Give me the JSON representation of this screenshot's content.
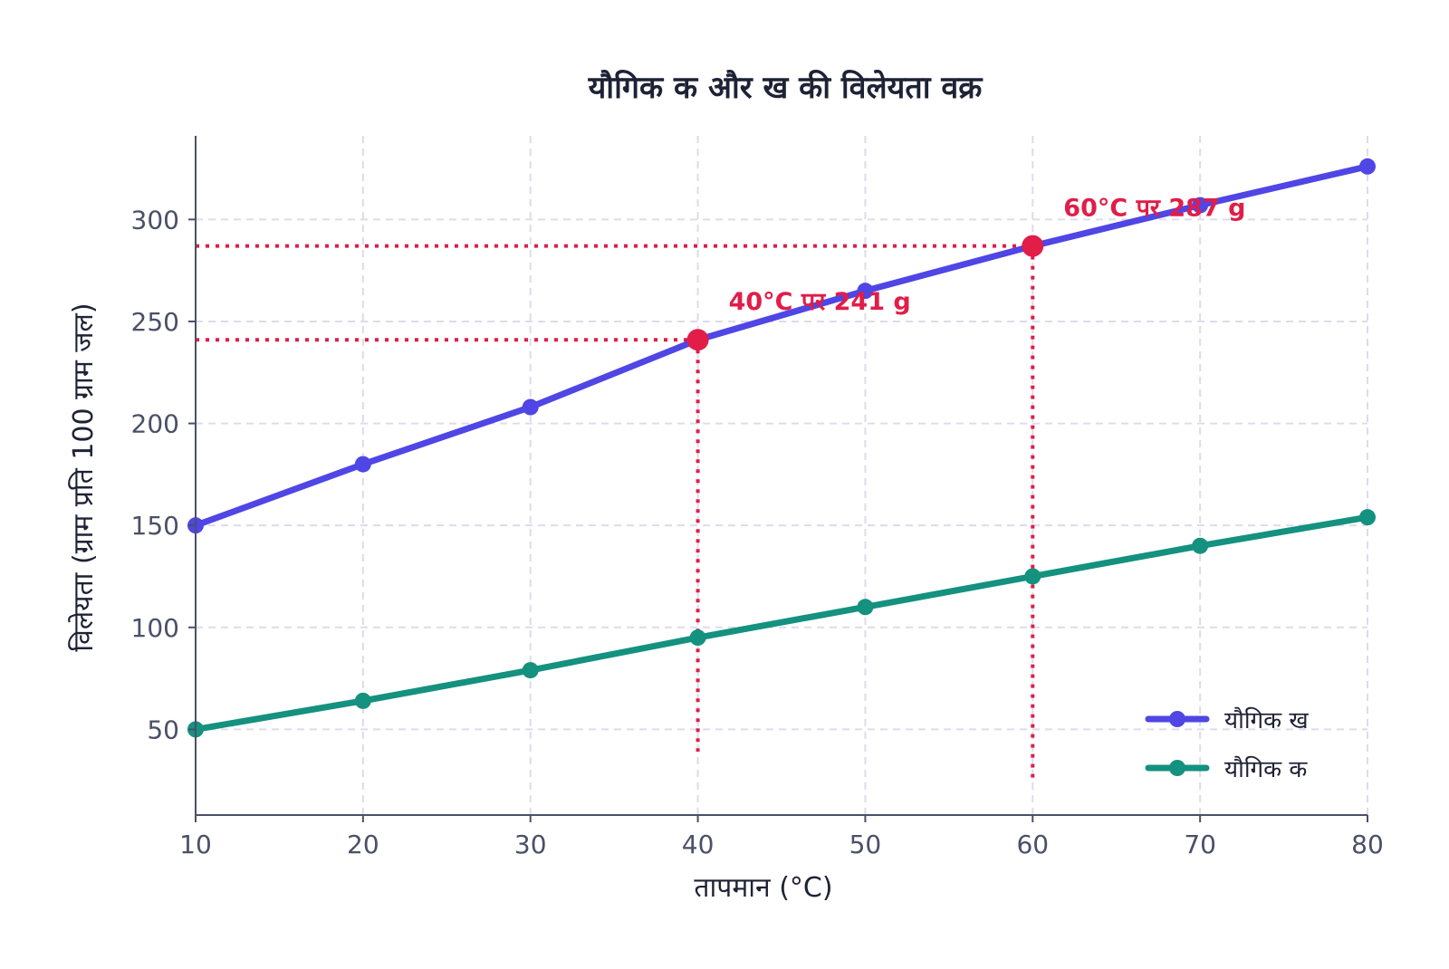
{
  "chart_data": {
    "type": "line",
    "title": "यौगिक क और ख की विलेयता वक्र",
    "xlabel": "तापमान (°C)",
    "ylabel": "विलेयता (ग्राम प्रति 100 ग्राम जल)",
    "x": [
      10,
      20,
      30,
      40,
      50,
      60,
      70,
      80
    ],
    "xlim": [
      10,
      80
    ],
    "ylim": [
      8,
      341
    ],
    "xticks": [
      "10",
      "20",
      "30",
      "40",
      "50",
      "60",
      "70",
      "80"
    ],
    "yticks": [
      "50",
      "100",
      "150",
      "200",
      "250",
      "300"
    ],
    "grid": true,
    "legend_position": "bottom-right",
    "series": [
      {
        "name": "यौगिक ख",
        "color": "#4f46e5",
        "values": [
          150,
          180,
          208,
          241,
          265,
          287,
          307,
          326
        ]
      },
      {
        "name": "यौगिक क",
        "color": "#14917f",
        "values": [
          50,
          64,
          79,
          95,
          110,
          125,
          140,
          154
        ]
      }
    ],
    "annotations": [
      {
        "x": 40,
        "y": 241,
        "text": "40°C पर 241 g",
        "color": "#e11d48"
      },
      {
        "x": 60,
        "y": 287,
        "text": "60°C पर 287 g",
        "color": "#e11d48"
      }
    ]
  }
}
